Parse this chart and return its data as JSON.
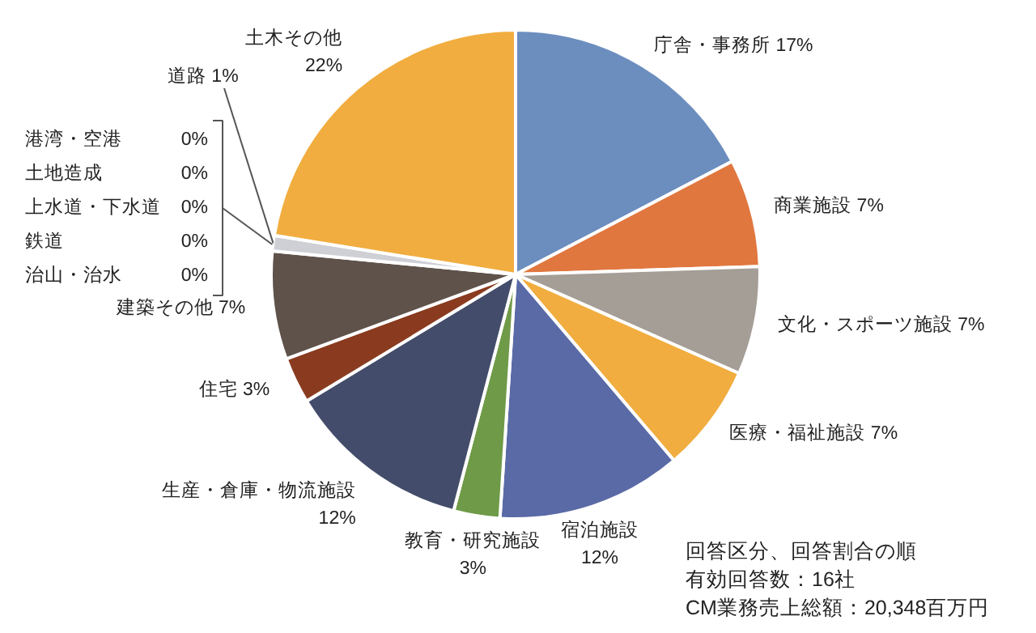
{
  "chart_data": {
    "type": "pie",
    "categories": [
      "庁舎・事務所",
      "商業施設",
      "文化・スポーツ施設",
      "医療・福祉施設",
      "宿泊施設",
      "教育・研究施設",
      "生産・倉庫・物流施設",
      "住宅",
      "建築その他",
      "治山・治水",
      "鉄道",
      "上水道・下水道",
      "土地造成",
      "港湾・空港",
      "道路",
      "土木その他"
    ],
    "values": [
      17,
      7,
      7,
      7,
      12,
      3,
      12,
      3,
      7,
      0,
      0,
      0,
      0,
      0,
      1,
      22
    ],
    "value_labels": [
      "17%",
      "7%",
      "7%",
      "7%",
      "12%",
      "3%",
      "12%",
      "3%",
      "7%",
      "0%",
      "0%",
      "0%",
      "0%",
      "0%",
      "1%",
      "22%"
    ],
    "colors": [
      "#6c8ebf",
      "#e0773f",
      "#a49e97",
      "#f1ad3f",
      "#5a6aa6",
      "#6f9a48",
      "#434c6a",
      "#8a3b1f",
      "#5f524a",
      "#bbbbbb",
      "#bbbbbb",
      "#bbbbbb",
      "#bbbbbb",
      "#bbbbbb",
      "#cfd0d6",
      "#f1ad3f"
    ],
    "annotations": [
      "回答区分、回答割合の順",
      "有効回答数：16社",
      "CM業務売上総額：20,348百万円"
    ]
  }
}
